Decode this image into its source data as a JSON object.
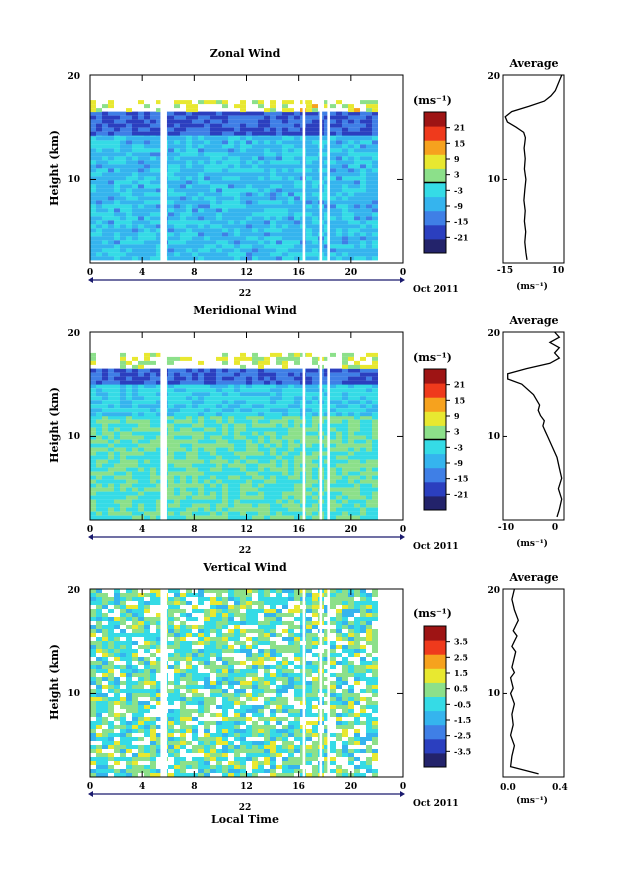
{
  "colors": {
    "scale": [
      "#23236b",
      "#2b3fbf",
      "#3f7fe6",
      "#35b4ee",
      "#35dbe6",
      "#8ce08a",
      "#e8e830",
      "#f6a21e",
      "#ef3a1c",
      "#9e1414"
    ],
    "axis": "#000000",
    "date_marker": "#1a1a6e",
    "curve": "#000000"
  },
  "chart_data": [
    {
      "type": "heatmap",
      "title": "Zonal Wind",
      "ylabel": "Height (km)",
      "x": [
        0,
        4,
        8,
        12,
        16,
        20,
        0
      ],
      "xlim": [
        0,
        24
      ],
      "ylim": [
        2,
        20
      ],
      "ytick_labels": [
        "20",
        "10"
      ],
      "day_label": "22",
      "date_label": "Oct 2011",
      "colorbar": {
        "unit": "(ms⁻¹)",
        "ticks": [
          "21",
          "15",
          "9",
          "3",
          "-3",
          "-9",
          "-15",
          "-21"
        ],
        "range": [
          -24,
          24
        ],
        "zero_line": true
      },
      "data_gaps_hours": [
        [
          5.4,
          5.9
        ],
        [
          16.3,
          16.5
        ],
        [
          17.6,
          17.8
        ],
        [
          18.2,
          18.4
        ]
      ],
      "features": [
        {
          "z_km": [
            2.3,
            14.5
          ],
          "value_ms": -6
        },
        {
          "z_km": [
            14.5,
            16.5
          ],
          "value_ms": -15
        },
        {
          "z_km": [
            16.5,
            17.6
          ],
          "value_ms": 6
        }
      ],
      "average": {
        "title": "Average",
        "xlabel": "(ms⁻¹)",
        "xtick_labels": [
          "-15",
          "10"
        ],
        "xlim": [
          -16,
          12
        ],
        "x": [
          -5,
          -5.5,
          -6,
          -5.6,
          -6.2,
          -5.8,
          -6.4,
          -6,
          -5.5,
          -6.2,
          -5.8,
          -6.3,
          -6,
          -5.7,
          -6.5,
          -10,
          -14,
          -15,
          -12,
          -4,
          3,
          6,
          8,
          9,
          10,
          11
        ],
        "y": [
          2.3,
          3,
          4,
          5,
          6,
          7,
          8,
          9,
          10,
          11,
          12,
          13,
          13.5,
          14,
          14.5,
          15,
          15.5,
          16,
          16.5,
          17,
          17.5,
          18,
          18.5,
          19,
          19.5,
          20
        ]
      }
    },
    {
      "type": "heatmap",
      "title": "Meridional Wind",
      "ylabel": "Height (km)",
      "x": [
        0,
        4,
        8,
        12,
        16,
        20,
        0
      ],
      "xlim": [
        0,
        24
      ],
      "ylim": [
        2,
        20
      ],
      "ytick_labels": [
        "20",
        "10"
      ],
      "day_label": "22",
      "date_label": "Oct 2011",
      "colorbar": {
        "unit": "(ms⁻¹)",
        "ticks": [
          "21",
          "15",
          "9",
          "3",
          "-3",
          "-9",
          "-15",
          "-21"
        ],
        "range": [
          -24,
          24
        ],
        "zero_line": true
      },
      "data_gaps_hours": [
        [
          5.4,
          5.9
        ],
        [
          16.3,
          16.5
        ],
        [
          17.6,
          17.8
        ],
        [
          18.2,
          18.4
        ]
      ],
      "features": [
        {
          "z_km": [
            2.3,
            12
          ],
          "value_ms": 0
        },
        {
          "z_km": [
            12,
            15
          ],
          "value_ms": -4
        },
        {
          "z_km": [
            15,
            16.5
          ],
          "value_ms": -14
        },
        {
          "z_km": [
            16.5,
            18
          ],
          "value_ms": 5
        }
      ],
      "average": {
        "title": "Average",
        "xlabel": "(ms⁻¹)",
        "xtick_labels": [
          "-10",
          "0"
        ],
        "xlim": [
          -11,
          2
        ],
        "x": [
          0.5,
          1,
          1.5,
          0.8,
          1.5,
          1,
          0.5,
          -0.5,
          -1.5,
          -2,
          -2.5,
          -2.2,
          -3,
          -3.5,
          -3.2,
          -4.5,
          -7,
          -10,
          -10,
          -6,
          -1,
          1,
          0,
          1,
          -1,
          1,
          0
        ],
        "y": [
          2.3,
          3,
          4,
          5,
          6,
          7,
          8,
          9,
          10,
          10.5,
          11,
          11.5,
          12,
          12.5,
          13,
          14,
          15,
          15.5,
          16,
          16.5,
          17,
          17.5,
          18,
          18.5,
          19,
          19.5,
          20
        ]
      }
    },
    {
      "type": "heatmap",
      "title": "Vertical Wind",
      "ylabel": "Height (km)",
      "xlabel": "Local Time",
      "x": [
        0,
        4,
        8,
        12,
        16,
        20,
        0
      ],
      "xlim": [
        0,
        24
      ],
      "ylim": [
        2,
        20
      ],
      "ytick_labels": [
        "20",
        "10"
      ],
      "day_label": "22",
      "date_label": "Oct 2011",
      "colorbar": {
        "unit": "(ms⁻¹)",
        "ticks": [
          "3.5",
          "2.5",
          "1.5",
          "0.5",
          "-0.5",
          "-1.5",
          "-2.5",
          "-3.5"
        ],
        "range": [
          -4,
          4
        ],
        "zero_line": false
      },
      "data_gaps_hours": [
        [
          5.4,
          5.9
        ],
        [
          16.3,
          16.5
        ],
        [
          17.6,
          17.8
        ],
        [
          18.2,
          18.4
        ]
      ],
      "features": [
        {
          "z_km": [
            2.3,
            20
          ],
          "value_ms": 0
        }
      ],
      "average": {
        "title": "Average",
        "xlabel": "(ms⁻¹)",
        "xtick_labels": [
          "0.0",
          "0.4"
        ],
        "xlim": [
          -0.03,
          0.45
        ],
        "x": [
          0.25,
          0.03,
          0.04,
          0.06,
          0.03,
          0.05,
          0.04,
          0.06,
          0.03,
          0.05,
          0.04,
          0.03,
          0.06,
          0.04,
          0.05,
          0.07,
          0.04,
          0.06,
          0.08,
          0.05,
          0.07,
          0.09,
          0.06,
          0.05,
          0.04,
          0.06
        ],
        "y": [
          2.3,
          3,
          4,
          5,
          6,
          7,
          8,
          9,
          10,
          10.5,
          11,
          11.5,
          12,
          12.5,
          13,
          14,
          14.5,
          15,
          15.5,
          16,
          16.5,
          17,
          18,
          18.5,
          19,
          20
        ]
      }
    }
  ]
}
